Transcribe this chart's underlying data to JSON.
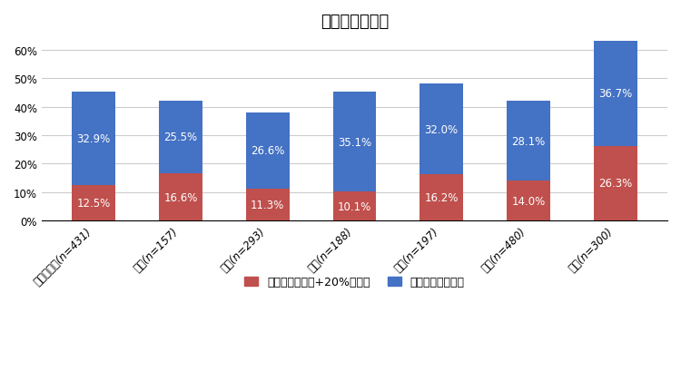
{
  "title": "自然災害や事故",
  "categories": [
    "総務・企画(n=431)",
    "税務(n=157)",
    "民生(n=293)",
    "衛生(n=188)",
    "土木(n=197)",
    "教育(n=480)",
    "消防(n=300)"
  ],
  "values_red": [
    12.5,
    16.6,
    11.3,
    10.1,
    16.2,
    14.0,
    26.3
  ],
  "values_blue": [
    32.9,
    25.5,
    26.6,
    35.1,
    32.0,
    28.1,
    36.7
  ],
  "color_red": "#c0504d",
  "color_blue": "#4472c4",
  "legend_red": "増加している（+20%以上）",
  "legend_blue": "やや増加している",
  "ylim": [
    0,
    65
  ],
  "yticks": [
    0,
    10,
    20,
    30,
    40,
    50,
    60
  ],
  "ytick_labels": [
    "0%",
    "10%",
    "20%",
    "30%",
    "40%",
    "50%",
    "60%"
  ],
  "background_color": "#ffffff",
  "grid_color": "#cccccc",
  "title_fontsize": 13,
  "label_fontsize": 8.5,
  "tick_fontsize": 8.5,
  "legend_fontsize": 9
}
